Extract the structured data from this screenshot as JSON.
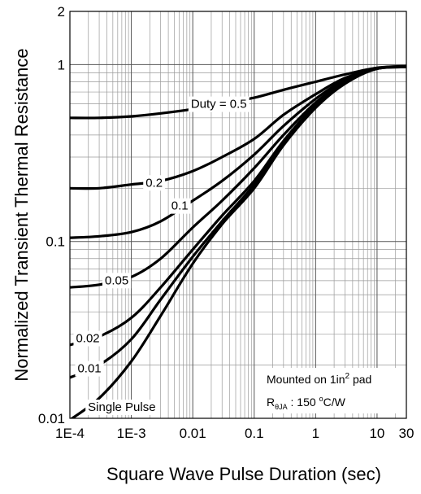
{
  "chart_data": {
    "type": "line",
    "title": "",
    "xlabel": "Square Wave Pulse Duration (sec)",
    "ylabel": "Normalized Transient Thermal Resistance",
    "xscale": "log",
    "yscale": "log",
    "xlim": [
      0.0001,
      30
    ],
    "ylim": [
      0.01,
      2
    ],
    "grid": true,
    "x_ticks": [
      {
        "value": 0.0001,
        "label": "1E-4"
      },
      {
        "value": 0.001,
        "label": "1E-3"
      },
      {
        "value": 0.01,
        "label": "0.01"
      },
      {
        "value": 0.1,
        "label": "0.1"
      },
      {
        "value": 1,
        "label": "1"
      },
      {
        "value": 10,
        "label": "10"
      },
      {
        "value": 30,
        "label": "30"
      }
    ],
    "y_ticks": [
      {
        "value": 0.01,
        "label": "0.01"
      },
      {
        "value": 0.1,
        "label": "0.1"
      },
      {
        "value": 1,
        "label": "1"
      },
      {
        "value": 2,
        "label": "2"
      }
    ],
    "series": [
      {
        "label": "Duty =   0.5",
        "x": [
          0.0001,
          0.0003,
          0.001,
          0.003,
          0.01,
          0.03,
          0.1,
          0.3,
          1,
          3,
          10,
          30
        ],
        "y": [
          0.5,
          0.5,
          0.51,
          0.53,
          0.56,
          0.6,
          0.65,
          0.72,
          0.8,
          0.88,
          0.96,
          0.98
        ]
      },
      {
        "label": "0.2",
        "x": [
          0.0001,
          0.0003,
          0.001,
          0.003,
          0.01,
          0.03,
          0.1,
          0.3,
          1,
          3,
          10,
          30
        ],
        "y": [
          0.2,
          0.2,
          0.21,
          0.22,
          0.25,
          0.3,
          0.38,
          0.52,
          0.68,
          0.84,
          0.95,
          0.97
        ]
      },
      {
        "label": "0.1",
        "x": [
          0.0001,
          0.0003,
          0.001,
          0.003,
          0.01,
          0.03,
          0.1,
          0.3,
          1,
          3,
          10,
          30
        ],
        "y": [
          0.105,
          0.107,
          0.113,
          0.13,
          0.17,
          0.22,
          0.31,
          0.45,
          0.64,
          0.82,
          0.95,
          0.97
        ]
      },
      {
        "label": "0.05",
        "x": [
          0.0001,
          0.0003,
          0.001,
          0.003,
          0.01,
          0.03,
          0.1,
          0.3,
          1,
          3,
          10,
          30
        ],
        "y": [
          0.055,
          0.057,
          0.063,
          0.08,
          0.12,
          0.17,
          0.26,
          0.4,
          0.61,
          0.8,
          0.95,
          0.97
        ]
      },
      {
        "label": "0.02",
        "x": [
          0.0001,
          0.0003,
          0.001,
          0.003,
          0.01,
          0.03,
          0.1,
          0.3,
          1,
          3,
          10,
          30
        ],
        "y": [
          0.026,
          0.029,
          0.037,
          0.055,
          0.09,
          0.14,
          0.22,
          0.37,
          0.59,
          0.79,
          0.95,
          0.97
        ]
      },
      {
        "label": "0.01",
        "x": [
          0.0001,
          0.0003,
          0.001,
          0.003,
          0.01,
          0.03,
          0.1,
          0.3,
          1,
          3,
          10,
          30
        ],
        "y": [
          0.017,
          0.02,
          0.028,
          0.047,
          0.082,
          0.13,
          0.21,
          0.36,
          0.58,
          0.79,
          0.95,
          0.97
        ]
      },
      {
        "label": "Single Pulse",
        "x": [
          0.0001,
          0.0003,
          0.001,
          0.003,
          0.01,
          0.03,
          0.1,
          0.3,
          1,
          3,
          10,
          30
        ],
        "y": [
          0.0098,
          0.013,
          0.021,
          0.038,
          0.075,
          0.125,
          0.2,
          0.35,
          0.57,
          0.78,
          0.95,
          0.97
        ]
      }
    ],
    "annotation_line1_prefix": "Mounted on 1in",
    "annotation_line1_sup": "2",
    "annotation_line1_suffix": " pad",
    "annotation_line2_r": "R",
    "annotation_line2_sub": "θJA",
    "annotation_line2_mid": " : 150 ",
    "annotation_line2_deg": "o",
    "annotation_line2_unit": "C/W"
  }
}
